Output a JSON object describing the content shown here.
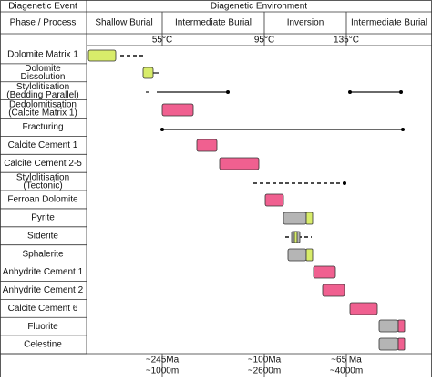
{
  "header": {
    "event": "Diagenetic Event",
    "environment": "Diagenetic Environment",
    "phase_process": "Phase / Process",
    "stages": [
      "Shallow Burial",
      "Intermediate Burial",
      "Inversion",
      "Intermediate Burial"
    ],
    "temperatures": [
      "55°C",
      "95°C",
      "135°C"
    ]
  },
  "events": [
    [
      "Dolomite Matrix 1"
    ],
    [
      "Dolomite",
      "Dissolution"
    ],
    [
      "Stylolitisation",
      "(Bedding Parallel)"
    ],
    [
      "Dedolomitisation",
      "(Calcite Matrix 1)"
    ],
    [
      "Fracturing"
    ],
    [
      "Calcite Cement 1"
    ],
    [
      "Calcite Cement 2-5"
    ],
    [
      "Stylolitisation",
      "(Tectonic)"
    ],
    [
      "Ferroan Dolomite"
    ],
    [
      "Pyrite"
    ],
    [
      "Siderite"
    ],
    [
      "Sphalerite"
    ],
    [
      "Anhydrite Cement 1"
    ],
    [
      "Anhydrite Cement 2"
    ],
    [
      "Calcite Cement 6"
    ],
    [
      "Fluorite"
    ],
    [
      "Celestine"
    ]
  ],
  "footer": {
    "ages": [
      "~245Ma",
      "~100Ma",
      "~65 Ma"
    ],
    "depths": [
      "~1000m",
      "~2600m",
      "~4000m"
    ]
  }
}
